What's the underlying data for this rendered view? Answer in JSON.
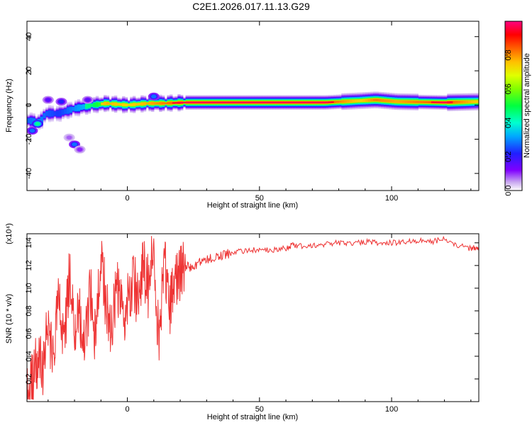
{
  "title": "C2E1.2026.017.11.13.G29",
  "chart_data": [
    {
      "type": "heatmap",
      "xlabel": "Height of straight line (km)",
      "ylabel": "Frequency (Hz)",
      "xlim": [
        -38,
        133
      ],
      "ylim": [
        -50,
        49
      ],
      "xticks": [
        0,
        50,
        100
      ],
      "yticks": [
        -40,
        -20,
        0,
        20,
        40
      ],
      "colorbar": {
        "label": "Normalized spectral amplitude",
        "range": [
          0,
          1
        ],
        "ticks": [
          0.0,
          0.2,
          0.4,
          0.6,
          0.8
        ],
        "colormap": [
          "#ffffff",
          "#c8a8f0",
          "#8000ff",
          "#1f1fff",
          "#00a8ff",
          "#00ffd0",
          "#00ff40",
          "#80ff00",
          "#e0ff00",
          "#ffc000",
          "#ff6000",
          "#ff0000",
          "#ff0080"
        ]
      },
      "ridge": [
        {
          "x": -38,
          "f": -9,
          "amp": 0.55
        },
        {
          "x": -33,
          "f": -10,
          "amp": 0.6
        },
        {
          "x": -31,
          "f": -5,
          "amp": 0.55
        },
        {
          "x": -26,
          "f": -5,
          "amp": 0.5
        },
        {
          "x": -20,
          "f": -2,
          "amp": 0.6
        },
        {
          "x": -13,
          "f": 0,
          "amp": 0.7
        },
        {
          "x": -8,
          "f": 1,
          "amp": 0.85
        },
        {
          "x": 0,
          "f": 0,
          "amp": 0.8
        },
        {
          "x": 8,
          "f": 1,
          "amp": 0.85
        },
        {
          "x": 14,
          "f": 1,
          "amp": 0.9
        },
        {
          "x": 22,
          "f": 1.5,
          "amp": 0.95
        },
        {
          "x": 50,
          "f": 1.5,
          "amp": 0.98
        },
        {
          "x": 75,
          "f": 1.5,
          "amp": 0.95
        },
        {
          "x": 88,
          "f": 2.5,
          "amp": 0.8
        },
        {
          "x": 94,
          "f": 3,
          "amp": 0.9
        },
        {
          "x": 102,
          "f": 2,
          "amp": 0.85
        },
        {
          "x": 120,
          "f": 1.5,
          "amp": 0.95
        },
        {
          "x": 133,
          "f": 2,
          "amp": 0.8
        }
      ],
      "scatter_blobs": [
        {
          "x": -34,
          "f": -11,
          "amp": 0.45
        },
        {
          "x": -36,
          "f": -15,
          "amp": 0.3
        },
        {
          "x": -30,
          "f": 3,
          "amp": 0.2
        },
        {
          "x": -25,
          "f": 2,
          "amp": 0.25
        },
        {
          "x": -22,
          "f": -19,
          "amp": 0.12
        },
        {
          "x": -20,
          "f": -23,
          "amp": 0.3
        },
        {
          "x": -18,
          "f": -26,
          "amp": 0.15
        },
        {
          "x": -15,
          "f": 3,
          "amp": 0.2
        },
        {
          "x": 10,
          "f": 5,
          "amp": 0.3
        }
      ]
    },
    {
      "type": "line",
      "xlabel": "Height of straight line (km)",
      "ylabel": "SNR (10 * v/v)",
      "yscale_label": "(x10⁴)",
      "xlim": [
        -38,
        133
      ],
      "ylim": [
        0,
        1.48
      ],
      "xticks": [
        0,
        50,
        100
      ],
      "yticks": [
        0.2,
        0.4,
        0.6,
        0.8,
        1.0,
        1.2,
        1.4
      ],
      "color": "#ee3333",
      "x": [
        -38,
        -36,
        -34,
        -32,
        -30,
        -28,
        -26,
        -24,
        -22,
        -20,
        -18,
        -16,
        -14,
        -12,
        -10,
        -8,
        -6,
        -4,
        -2,
        0,
        2,
        4,
        6,
        8,
        10,
        12,
        14,
        16,
        18,
        20,
        22,
        25,
        28,
        32,
        36,
        40,
        45,
        50,
        55,
        60,
        62,
        65,
        70,
        75,
        80,
        85,
        90,
        95,
        100,
        105,
        110,
        115,
        120,
        125,
        130,
        133
      ],
      "y": [
        0.05,
        0.15,
        0.4,
        0.25,
        0.7,
        0.35,
        0.9,
        0.45,
        1.1,
        0.6,
        0.75,
        0.5,
        0.95,
        0.55,
        1.35,
        0.8,
        0.65,
        1.0,
        0.75,
        0.85,
        1.1,
        0.9,
        1.2,
        1.0,
        1.45,
        0.4,
        1.3,
        0.8,
        1.05,
        1.12,
        1.18,
        1.2,
        1.24,
        1.27,
        1.3,
        1.32,
        1.33,
        1.34,
        1.34,
        1.35,
        1.38,
        1.37,
        1.38,
        1.39,
        1.4,
        1.39,
        1.41,
        1.4,
        1.4,
        1.41,
        1.42,
        1.41,
        1.43,
        1.38,
        1.35,
        1.36
      ]
    }
  ]
}
